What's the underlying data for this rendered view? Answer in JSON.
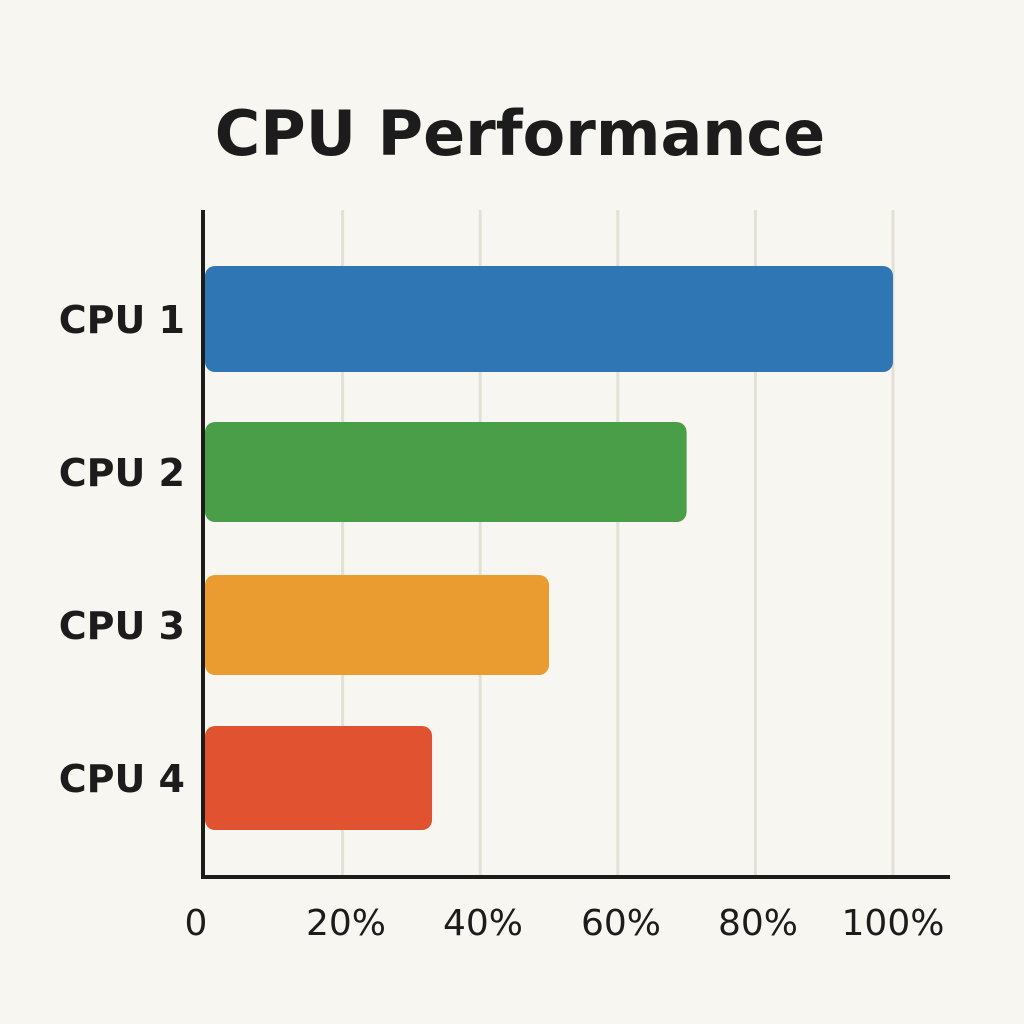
{
  "chart_data": {
    "type": "bar",
    "orientation": "horizontal",
    "title": "CPU Performance",
    "categories": [
      "CPU 1",
      "CPU 2",
      "CPU 3",
      "CPU 4"
    ],
    "values": [
      100,
      70,
      50,
      33
    ],
    "unit": "%",
    "colors": [
      "#2e77b4",
      "#4a9e48",
      "#eb9c30",
      "#e05230"
    ],
    "xlim": [
      0,
      100
    ],
    "ticks": [
      0,
      20,
      40,
      60,
      80,
      100
    ],
    "tick_labels": [
      "0",
      "20%",
      "40%",
      "60%",
      "80%",
      "100%"
    ],
    "grid": true,
    "legend": "none"
  }
}
